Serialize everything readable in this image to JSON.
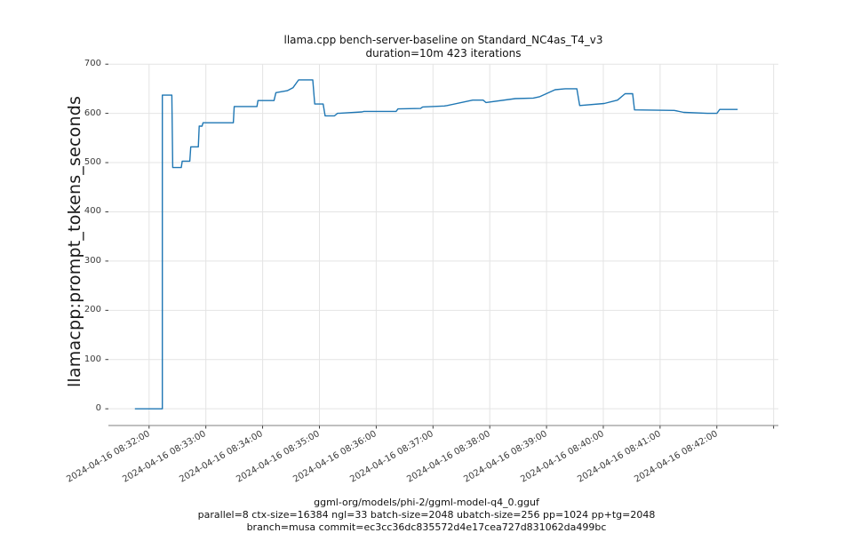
{
  "figure": {
    "title_line1": "llama.cpp bench-server-baseline on Standard_NC4as_T4_v3",
    "title_line2": "duration=10m 423 iterations",
    "ylabel": "llamacpp:prompt_tokens_seconds",
    "footer_line1": "ggml-org/models/phi-2/ggml-model-q4_0.gguf",
    "footer_line2": "parallel=8 ctx-size=16384 ngl=33 batch-size=2048 ubatch-size=256 pp=1024 pp+tg=2048",
    "footer_line3": "branch=musa commit=ec3cc36dc835572d4e17cea727d831062da499bc"
  },
  "chart_data": {
    "type": "line",
    "title": "llama.cpp bench-server-baseline on Standard_NC4as_T4_v3",
    "subtitle": "duration=10m 423 iterations",
    "xlabel": "",
    "ylabel": "llamacpp:prompt_tokens_seconds",
    "x_unit": "seconds relative to 2024-04-16 08:32:00",
    "x_tick_labels": [
      "2024-04-16 08:32:00",
      "2024-04-16 08:33:00",
      "2024-04-16 08:34:00",
      "2024-04-16 08:35:00",
      "2024-04-16 08:36:00",
      "2024-04-16 08:37:00",
      "2024-04-16 08:38:00",
      "2024-04-16 08:39:00",
      "2024-04-16 08:40:00",
      "2024-04-16 08:41:00",
      "2024-04-16 08:42:00"
    ],
    "x_tick_seconds": [
      0,
      60,
      120,
      180,
      240,
      300,
      360,
      420,
      480,
      540,
      600
    ],
    "x_grid_extra_seconds": [
      660
    ],
    "y_ticks": [
      0,
      100,
      200,
      300,
      400,
      500,
      600,
      700
    ],
    "xlim": [
      -43,
      665
    ],
    "ylim": [
      -34,
      713
    ],
    "grid": true,
    "legend": null,
    "line_color": "#1f77b4",
    "grid_color": "#e4e4e4",
    "spine_color": "#7f7f7f",
    "tick_color": "#262626",
    "series": [
      {
        "name": "llamacpp:prompt_tokens_seconds",
        "points": [
          [
            -15,
            0
          ],
          [
            14,
            0
          ],
          [
            14,
            637
          ],
          [
            24,
            637
          ],
          [
            25,
            490
          ],
          [
            34,
            490
          ],
          [
            35,
            503
          ],
          [
            43,
            503
          ],
          [
            44,
            532
          ],
          [
            52,
            532
          ],
          [
            53,
            574
          ],
          [
            56,
            574
          ],
          [
            57,
            581
          ],
          [
            89,
            581
          ],
          [
            90,
            614
          ],
          [
            114,
            614
          ],
          [
            115,
            626
          ],
          [
            132,
            626
          ],
          [
            134,
            642
          ],
          [
            146,
            646
          ],
          [
            152,
            652
          ],
          [
            158,
            668
          ],
          [
            173,
            668
          ],
          [
            175,
            619
          ],
          [
            184,
            619
          ],
          [
            186,
            595
          ],
          [
            196,
            595
          ],
          [
            199,
            600
          ],
          [
            225,
            603
          ],
          [
            227,
            604
          ],
          [
            261,
            604
          ],
          [
            263,
            609
          ],
          [
            287,
            610
          ],
          [
            289,
            613
          ],
          [
            312,
            615
          ],
          [
            315,
            616
          ],
          [
            342,
            627
          ],
          [
            353,
            627
          ],
          [
            356,
            622
          ],
          [
            387,
            630
          ],
          [
            406,
            631
          ],
          [
            413,
            634
          ],
          [
            429,
            648
          ],
          [
            440,
            650
          ],
          [
            452,
            650
          ],
          [
            455,
            616
          ],
          [
            481,
            620
          ],
          [
            495,
            627
          ],
          [
            503,
            640
          ],
          [
            511,
            640
          ],
          [
            513,
            607
          ],
          [
            555,
            606
          ],
          [
            565,
            602
          ],
          [
            590,
            600
          ],
          [
            600,
            600
          ],
          [
            603,
            608
          ],
          [
            622,
            608
          ]
        ]
      }
    ]
  }
}
